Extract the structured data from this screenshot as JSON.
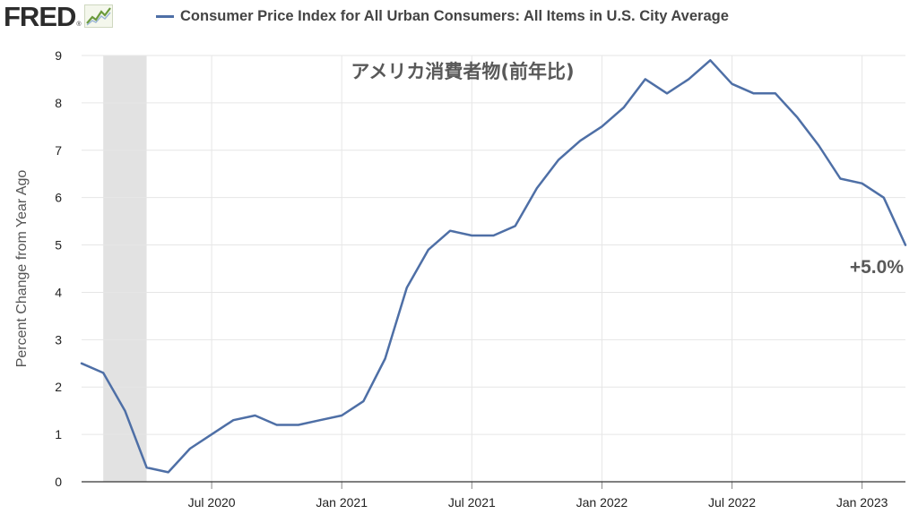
{
  "header": {
    "logo_text": "FRED",
    "logo_mark": "®",
    "series_title": "Consumer Price Index for All Urban Consumers: All Items in U.S. City Average"
  },
  "colors": {
    "series_line": "#4e6fa6",
    "recession_shade": "#e2e2e2",
    "gridline": "#e6e6e6",
    "annotation_text": "#595959"
  },
  "chart_data": {
    "type": "line",
    "title": "",
    "annotation_title": "アメリカ消費者物(前年比)",
    "annotation_last_value": "+5.0%",
    "ylabel": "Percent Change from Year Ago",
    "xlabel": "",
    "ylim": [
      0,
      9
    ],
    "y_ticks": [
      0,
      1,
      2,
      3,
      4,
      5,
      6,
      7,
      8,
      9
    ],
    "x_range": [
      "2020-01",
      "2023-03"
    ],
    "x_tick_labels": [
      {
        "date": "2020-07",
        "label": "Jul 2020"
      },
      {
        "date": "2021-01",
        "label": "Jan 2021"
      },
      {
        "date": "2021-07",
        "label": "Jul 2021"
      },
      {
        "date": "2022-01",
        "label": "Jan 2022"
      },
      {
        "date": "2022-07",
        "label": "Jul 2022"
      },
      {
        "date": "2023-01",
        "label": "Jan 2023"
      }
    ],
    "recession_shading": {
      "start": "2020-02",
      "end": "2020-04"
    },
    "grid": true,
    "legend": "top-left",
    "series": [
      {
        "name": "Consumer Price Index for All Urban Consumers: All Items in U.S. City Average",
        "x": [
          "2020-01",
          "2020-02",
          "2020-03",
          "2020-04",
          "2020-05",
          "2020-06",
          "2020-07",
          "2020-08",
          "2020-09",
          "2020-10",
          "2020-11",
          "2020-12",
          "2021-01",
          "2021-02",
          "2021-03",
          "2021-04",
          "2021-05",
          "2021-06",
          "2021-07",
          "2021-08",
          "2021-09",
          "2021-10",
          "2021-11",
          "2021-12",
          "2022-01",
          "2022-02",
          "2022-03",
          "2022-04",
          "2022-05",
          "2022-06",
          "2022-07",
          "2022-08",
          "2022-09",
          "2022-10",
          "2022-11",
          "2022-12",
          "2023-01",
          "2023-02",
          "2023-03"
        ],
        "values": [
          2.5,
          2.3,
          1.5,
          0.3,
          0.2,
          0.7,
          1.0,
          1.3,
          1.4,
          1.2,
          1.2,
          1.3,
          1.4,
          1.7,
          2.6,
          4.1,
          4.9,
          5.3,
          5.2,
          5.2,
          5.4,
          6.2,
          6.8,
          7.2,
          7.5,
          7.9,
          8.5,
          8.2,
          8.5,
          8.9,
          8.4,
          8.2,
          8.2,
          7.7,
          7.1,
          6.4,
          6.3,
          6.0,
          5.0
        ]
      }
    ]
  }
}
